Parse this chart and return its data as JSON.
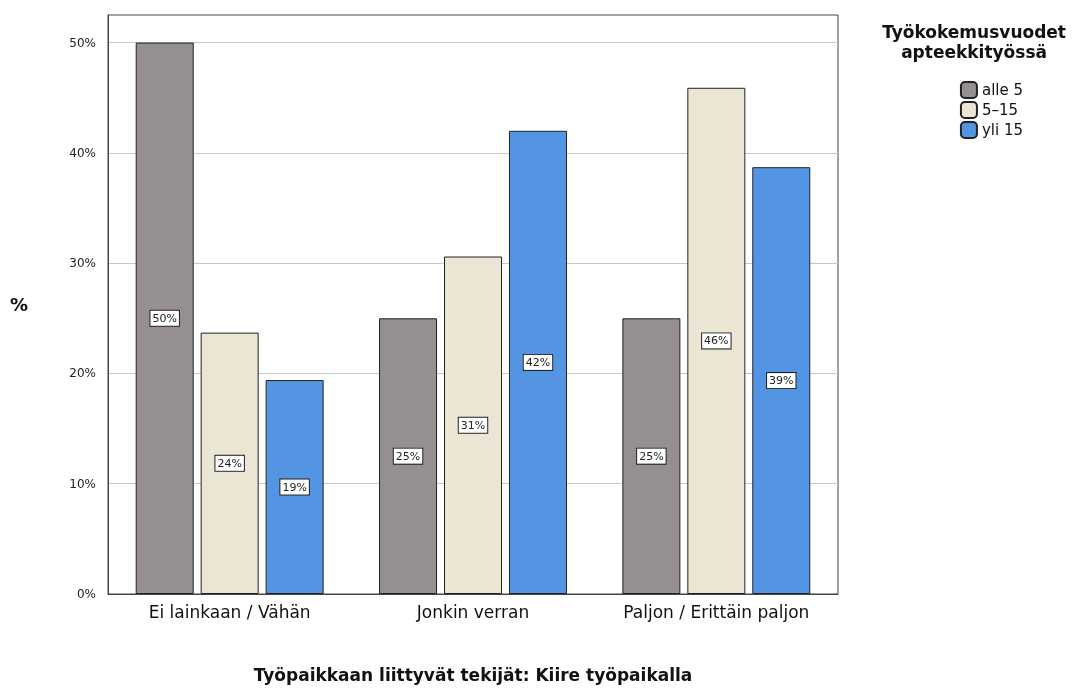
{
  "chart_data": {
    "type": "bar",
    "xlabel": "Työpaikkaan liittyvät tekijät: Kiire työpaikalla",
    "ylabel": "%",
    "legend_title": "Työkokemusvuodet apteekkityössä",
    "categories": [
      "Ei lainkaan / Vähän",
      "Jonkin verran",
      "Paljon / Erittäin paljon"
    ],
    "series": [
      {
        "name": "alle 5",
        "color": "#958f8f",
        "values": [
          50,
          25,
          25
        ],
        "value_labels": [
          "50%",
          "25%",
          "25%"
        ]
      },
      {
        "name": "5–15",
        "color": "#ebe5d3",
        "values": [
          23.7,
          30.6,
          45.9
        ],
        "value_labels": [
          "24%",
          "31%",
          "46%"
        ]
      },
      {
        "name": "yli 15",
        "color": "#5395e3",
        "values": [
          19.4,
          42.0,
          38.7
        ],
        "value_labels": [
          "19%",
          "42%",
          "39%"
        ]
      }
    ],
    "ylim": [
      0,
      52.5
    ],
    "yticks": [
      {
        "value": 0,
        "label": "0%"
      },
      {
        "value": 10,
        "label": "10%"
      },
      {
        "value": 20,
        "label": "20%"
      },
      {
        "value": 30,
        "label": "30%"
      },
      {
        "value": 40,
        "label": "40%"
      },
      {
        "value": 50,
        "label": "50%"
      }
    ],
    "grid": "y",
    "legend": "top right"
  }
}
